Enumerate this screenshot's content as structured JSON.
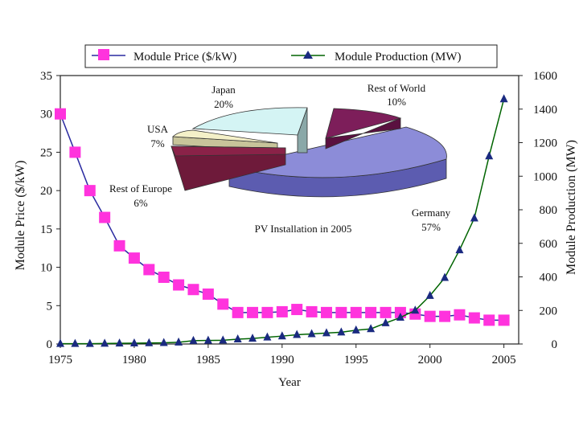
{
  "chart_data": {
    "type": "line",
    "title": "",
    "xlabel": "Year",
    "ylabel_left": "Module Price ($/kW)",
    "ylabel_right": "Module Production (MW)",
    "xlim": [
      1975,
      2006
    ],
    "x_ticks": [
      1975,
      1980,
      1985,
      1990,
      1995,
      2000,
      2005
    ],
    "ylim_left": [
      0,
      35
    ],
    "y_ticks_left": [
      0,
      5,
      10,
      15,
      20,
      25,
      30,
      35
    ],
    "ylim_right": [
      0,
      1600
    ],
    "y_ticks_right": [
      0,
      200,
      400,
      600,
      800,
      1000,
      1200,
      1400,
      1600
    ],
    "legend_position": "top",
    "grid": false,
    "series": [
      {
        "name": "Module Price ($/kW)",
        "axis": "left",
        "color": "#ff33dd",
        "line_color": "#2a2aa0",
        "marker": "square",
        "x": [
          1975,
          1976,
          1977,
          1978,
          1979,
          1980,
          1981,
          1982,
          1983,
          1984,
          1985,
          1986,
          1987,
          1988,
          1989,
          1990,
          1991,
          1992,
          1993,
          1994,
          1995,
          1996,
          1997,
          1998,
          1999,
          2000,
          2001,
          2002,
          2003,
          2004,
          2005
        ],
        "values": [
          30,
          25,
          20,
          16.5,
          12.8,
          11.2,
          9.7,
          8.7,
          7.7,
          7.1,
          6.5,
          5.2,
          4.1,
          4.1,
          4.1,
          4.2,
          4.5,
          4.2,
          4.1,
          4.1,
          4.1,
          4.1,
          4.1,
          4.1,
          3.9,
          3.6,
          3.6,
          3.8,
          3.4,
          3.1,
          3.1
        ]
      },
      {
        "name": "Module Production (MW)",
        "axis": "right",
        "color": "#1a2a80",
        "line_color": "#006400",
        "marker": "triangle",
        "x": [
          1975,
          1976,
          1977,
          1978,
          1979,
          1980,
          1981,
          1982,
          1983,
          1984,
          1985,
          1986,
          1987,
          1988,
          1989,
          1990,
          1991,
          1992,
          1993,
          1994,
          1995,
          1996,
          1997,
          1998,
          1999,
          2000,
          2001,
          2002,
          2003,
          2004,
          2005
        ],
        "values": [
          2,
          2,
          2,
          3,
          4,
          5,
          6,
          7,
          10,
          20,
          21,
          22,
          29,
          33,
          40,
          47,
          55,
          60,
          65,
          70,
          82,
          90,
          125,
          158,
          200,
          288,
          395,
          560,
          750,
          1120,
          1460
        ]
      }
    ],
    "inset_pie": {
      "title": "PV Installation in 2005",
      "slices": [
        {
          "label": "Germany",
          "value": 57,
          "display": "57%",
          "color": "#8c8cd8"
        },
        {
          "label": "Rest of World",
          "value": 10,
          "display": "10%",
          "color": "#7d1e5a"
        },
        {
          "label": "Japan",
          "value": 20,
          "display": "20%",
          "color": "#d4f4f4"
        },
        {
          "label": "USA",
          "value": 7,
          "display": "7%",
          "color": "#f4f0c8"
        },
        {
          "label": "Rest of Europe",
          "value": 6,
          "display": "6%",
          "color": "#8a2248"
        }
      ]
    }
  }
}
